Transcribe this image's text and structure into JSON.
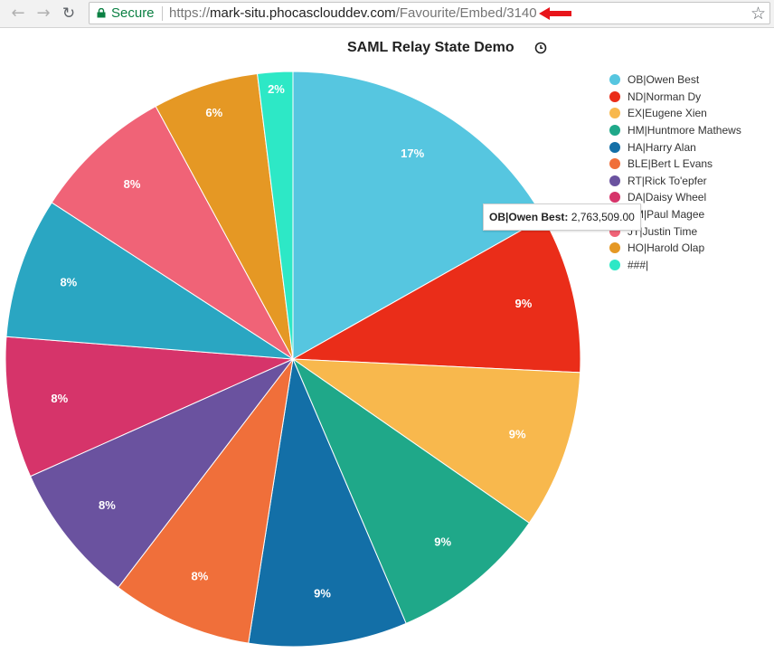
{
  "browser": {
    "back_icon": "back-arrow-icon",
    "forward_icon": "forward-arrow-icon",
    "reload_icon": "reload-icon",
    "secure_label": "Secure",
    "url_scheme": "https://",
    "url_host": "mark-situ.phocasclouddev.com",
    "url_path": "/Favourite/Embed/3140",
    "bookmark_icon": "star-icon",
    "annotation_arrow_color": "#e8151b"
  },
  "chart_header": {
    "title": "SAML Relay State Demo",
    "icon": "clock-icon"
  },
  "tooltip": {
    "label": "OB|Owen Best:",
    "value": "2,763,509.00"
  },
  "chart_data": {
    "type": "pie",
    "title": "SAML Relay State Demo",
    "legend_position": "right",
    "start_angle_deg": 0,
    "slices": [
      {
        "label": "OB|Owen Best",
        "percent": 17,
        "percent_label": "17%",
        "color": "#56c6e0"
      },
      {
        "label": "ND|Norman Dy",
        "percent": 9,
        "percent_label": "9%",
        "color": "#ea2d19"
      },
      {
        "label": "EX|Eugene Xien",
        "percent": 9,
        "percent_label": "9%",
        "color": "#f8b84d"
      },
      {
        "label": "HM|Huntmore Mathews",
        "percent": 9,
        "percent_label": "9%",
        "color": "#1fa889"
      },
      {
        "label": "HA|Harry Alan",
        "percent": 9,
        "percent_label": "9%",
        "color": "#136fa7"
      },
      {
        "label": "BLE|Bert L Evans",
        "percent": 8,
        "percent_label": "8%",
        "color": "#f06f3a"
      },
      {
        "label": "RT|Rick To'epfer",
        "percent": 8,
        "percent_label": "8%",
        "color": "#6a529f"
      },
      {
        "label": "DA|Daisy Wheel",
        "percent": 8,
        "percent_label": "8%",
        "color": "#d6346a"
      },
      {
        "label": "PM|Paul Magee",
        "legend_text": "PM|Paul Magee",
        "percent": 8,
        "percent_label": "8%",
        "color": "#2aa6c2"
      },
      {
        "label": "JT|Justin Time",
        "legend_text": "JT|Justin Time",
        "percent": 8,
        "percent_label": "8%",
        "color": "#f06377"
      },
      {
        "label": "HO|Harold Olap",
        "percent": 6,
        "percent_label": "6%",
        "color": "#e59824"
      },
      {
        "label": "###|",
        "percent": 2,
        "percent_label": "2%",
        "color": "#2de8c6"
      }
    ]
  }
}
